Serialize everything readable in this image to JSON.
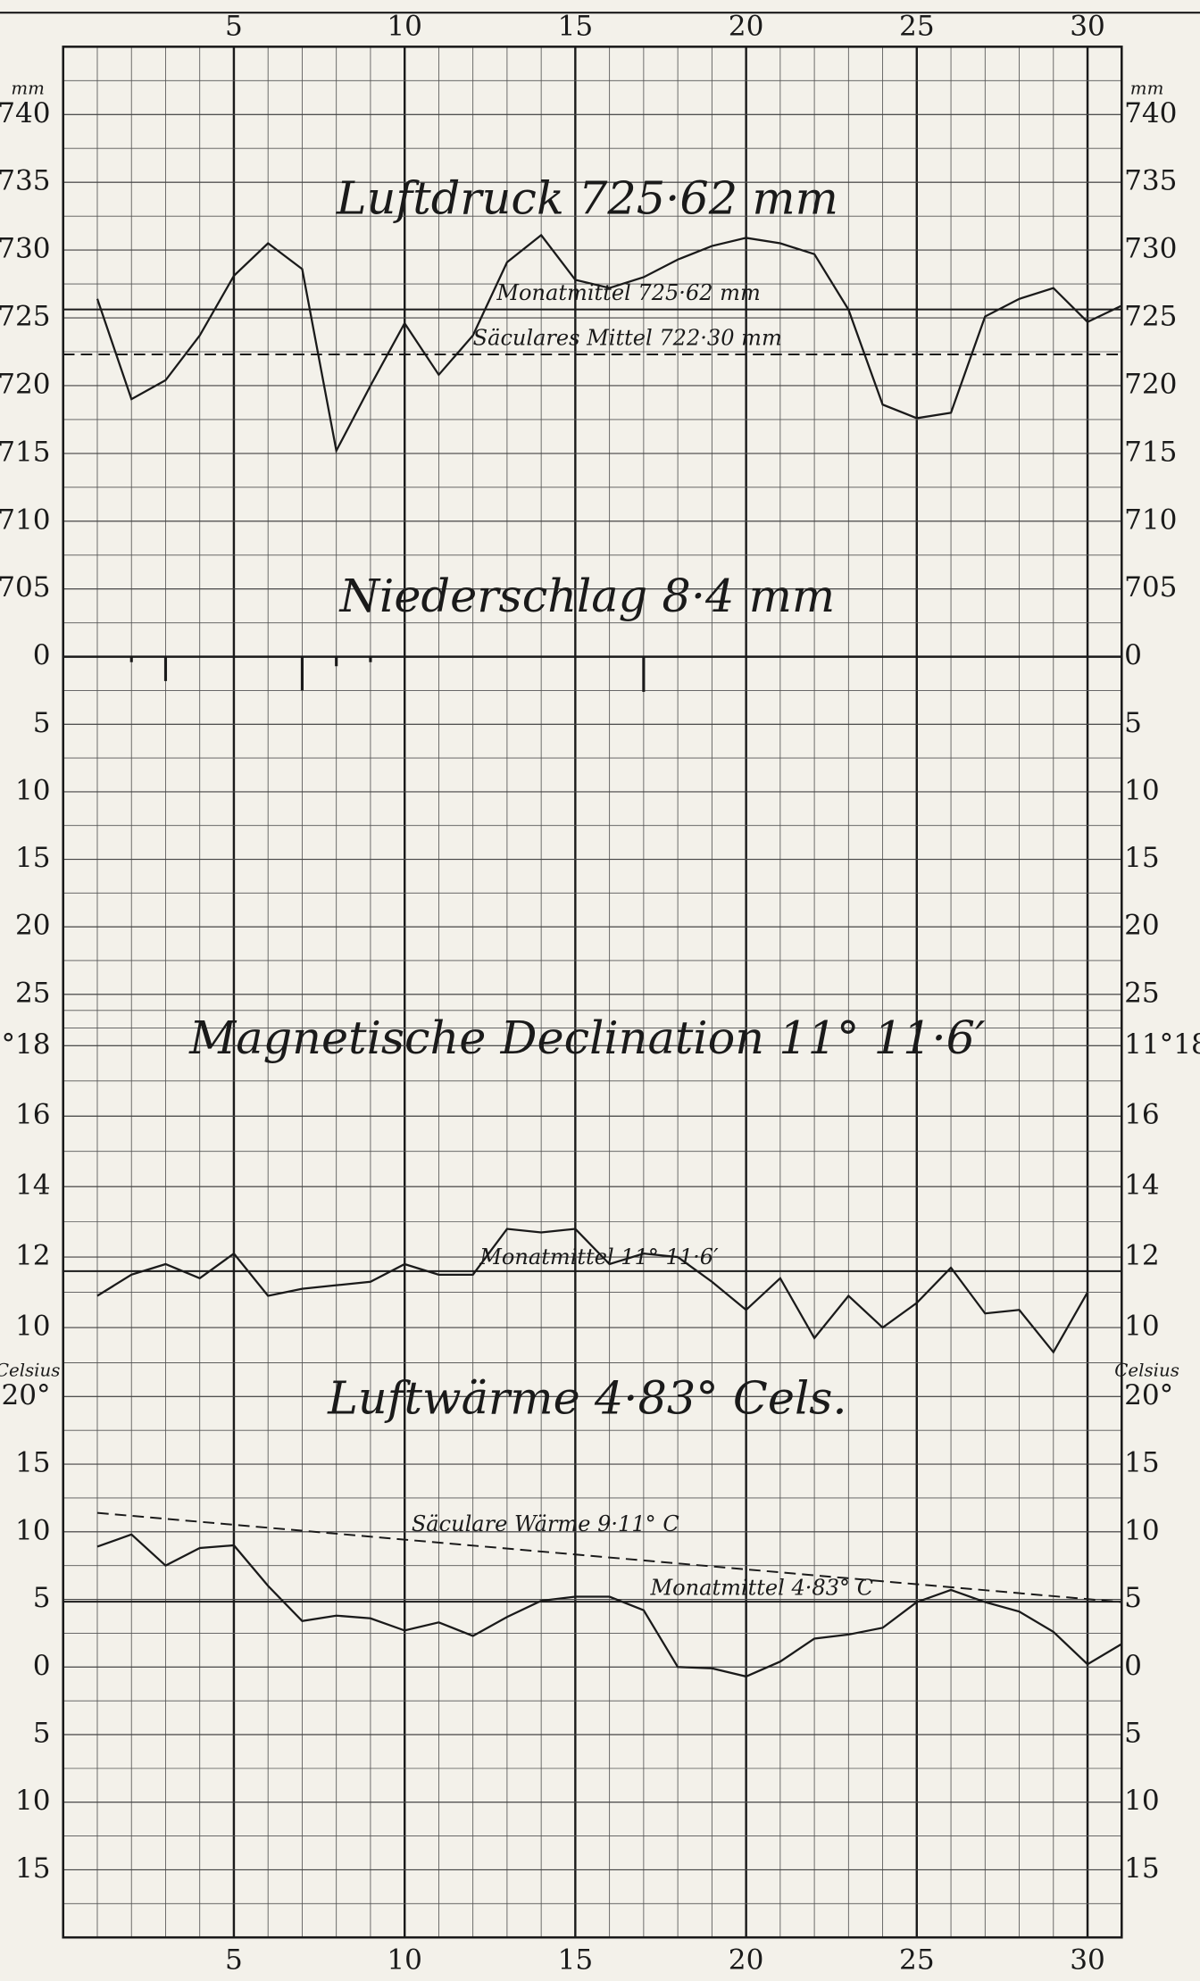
{
  "chart_data": [
    {
      "type": "line",
      "title": "Luftdruck 725·62 mm",
      "y_unit": "mm",
      "xlim": [
        0,
        31
      ],
      "xticks": [
        5,
        10,
        15,
        20,
        25,
        30
      ],
      "ylim": [
        700,
        745
      ],
      "yticks": [
        740,
        735,
        730,
        725,
        720,
        715,
        710,
        705
      ],
      "grid": true,
      "color": "#1a1a1a",
      "x": [
        1,
        2,
        3,
        4,
        5,
        6,
        7,
        8,
        9,
        10,
        11,
        12,
        13,
        14,
        15,
        16,
        17,
        18,
        19,
        20,
        21,
        22,
        23,
        24,
        25,
        26,
        27,
        28,
        29,
        30,
        31
      ],
      "values": [
        726.4,
        719.0,
        720.4,
        723.7,
        728.1,
        730.5,
        728.6,
        715.2,
        720.0,
        724.6,
        720.8,
        723.7,
        729.1,
        731.1,
        727.8,
        727.2,
        728.0,
        729.3,
        730.3,
        730.9,
        730.5,
        729.7,
        725.6,
        718.6,
        717.6,
        718.0,
        725.1,
        726.4,
        727.2,
        724.7,
        725.9
      ],
      "lines": [
        {
          "label": "Monatmittel 725·62 mm",
          "value": 725.62,
          "style": "solid"
        },
        {
          "label": "Säculares Mittel 722·30 mm",
          "value": 722.3,
          "style": "dashed"
        }
      ]
    },
    {
      "type": "bar",
      "title": "Niederschlag 8·4 mm",
      "ylim": [
        27.5,
        0
      ],
      "yticks": [
        0,
        5,
        10,
        15,
        20,
        25
      ],
      "grid": true,
      "color": "#1a1a1a",
      "x": [
        2,
        3,
        7,
        8,
        9,
        17
      ],
      "values": [
        0.4,
        1.8,
        2.5,
        0.7,
        0.4,
        2.6
      ]
    },
    {
      "type": "line",
      "title": "Magnetische Declination 11° 11·6′",
      "ylim": [
        9,
        18.5
      ],
      "yticks": [
        {
          "value": 18,
          "label": "11°18"
        },
        16,
        14,
        12,
        10
      ],
      "grid": true,
      "color": "#1a1a1a",
      "x": [
        1,
        2,
        3,
        4,
        5,
        6,
        7,
        8,
        9,
        10,
        11,
        12,
        13,
        14,
        15,
        16,
        17,
        18,
        19,
        20,
        21,
        22,
        23,
        24,
        25,
        26,
        27,
        28,
        29,
        30
      ],
      "values": [
        10.9,
        11.5,
        11.8,
        11.4,
        12.1,
        10.9,
        11.1,
        11.2,
        11.3,
        11.8,
        11.5,
        11.5,
        12.8,
        12.7,
        12.8,
        11.8,
        12.1,
        12.0,
        11.3,
        10.5,
        11.4,
        9.7,
        10.9,
        10.0,
        10.7,
        11.7,
        10.4,
        10.5,
        9.3,
        11.0
      ],
      "lines": [
        {
          "label": "Monatmittel 11° 11·6′",
          "value": 11.6,
          "style": "solid"
        }
      ]
    },
    {
      "type": "line",
      "title": "Luftwärme 4·83° Cels.",
      "y_unit": "Celsius",
      "xlim": [
        0,
        31
      ],
      "xticks": [
        5,
        10,
        15,
        20,
        25,
        30
      ],
      "ylim": [
        -20,
        22.5
      ],
      "yticks": [
        {
          "value": 20,
          "label": "20°"
        },
        15,
        10,
        5,
        0,
        {
          "value": -5,
          "label": "5"
        },
        {
          "value": -10,
          "label": "10"
        },
        {
          "value": -15,
          "label": "15"
        }
      ],
      "grid": true,
      "color": "#1a1a1a",
      "x": [
        1,
        2,
        3,
        4,
        5,
        6,
        7,
        8,
        9,
        10,
        11,
        12,
        13,
        14,
        15,
        16,
        17,
        18,
        19,
        20,
        21,
        22,
        23,
        24,
        25,
        26,
        27,
        28,
        29,
        30,
        31
      ],
      "values": [
        8.9,
        9.8,
        7.5,
        8.8,
        9.0,
        6.0,
        3.4,
        3.8,
        3.6,
        2.7,
        3.3,
        2.3,
        3.7,
        4.9,
        5.2,
        5.2,
        4.2,
        0.0,
        -0.1,
        -0.7,
        0.4,
        2.1,
        2.4,
        2.9,
        4.8,
        5.7,
        4.8,
        4.1,
        2.6,
        0.2,
        1.7
      ],
      "lines": [
        {
          "label": "Säculare Wärme 9·11° C",
          "x": [
            1,
            31
          ],
          "values": [
            11.4,
            4.8
          ],
          "style": "dashed"
        },
        {
          "label": "Monatmittel 4·83° C",
          "value": 4.83,
          "style": "solid"
        }
      ]
    }
  ]
}
